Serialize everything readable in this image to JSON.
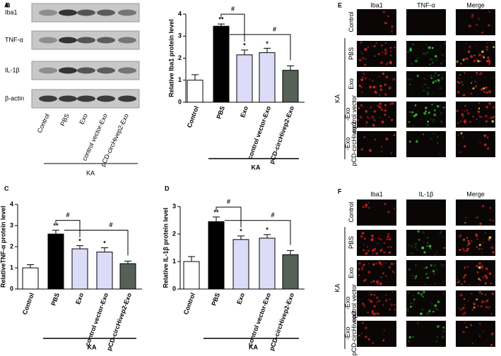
{
  "chart_data": [
    {
      "type": "bar",
      "panel": "B",
      "ylabel": "Relative Iba1 protein level",
      "group_label": "KA",
      "categories": [
        "Control",
        "PBS",
        "Exo",
        "control vector-Exo",
        "pCD-circHivep2-Exo"
      ],
      "values": [
        1.0,
        3.45,
        2.15,
        2.25,
        1.45
      ],
      "errors": [
        0.25,
        0.1,
        0.22,
        0.2,
        0.2
      ],
      "colors": [
        "#ffffff",
        "#000000",
        "#dcdcf8",
        "#dcdcf8",
        "#566056"
      ],
      "significance": [
        null,
        "**",
        "*",
        "*",
        null
      ],
      "comparison_labels": [
        "#",
        "#"
      ],
      "ylim": [
        0,
        4
      ],
      "yticks": [
        0,
        1,
        2,
        3,
        4
      ]
    },
    {
      "type": "bar",
      "panel": "C",
      "ylabel": "RelativeTNF-α  protein level",
      "group_label": "KA",
      "categories": [
        "Control",
        "PBS",
        "Exo",
        "control vector-Exo",
        "pCD-circHivep2-Exo"
      ],
      "values": [
        1.0,
        2.6,
        1.9,
        1.75,
        1.2
      ],
      "errors": [
        0.15,
        0.18,
        0.15,
        0.2,
        0.12
      ],
      "colors": [
        "#ffffff",
        "#000000",
        "#dcdcf8",
        "#dcdcf8",
        "#566056"
      ],
      "significance": [
        null,
        "**",
        "*",
        "*",
        null
      ],
      "comparison_labels": [
        "#",
        "#"
      ],
      "ylim": [
        0,
        4
      ],
      "yticks": [
        0,
        1,
        2,
        3,
        4
      ]
    },
    {
      "type": "bar",
      "panel": "D",
      "ylabel": "Relative IL-1β  protein level",
      "group_label": "KA",
      "categories": [
        "Control",
        "PBS",
        "Exo",
        "control vector-Exo",
        "pCD-circHivep2-Exo"
      ],
      "values": [
        1.0,
        2.45,
        1.8,
        1.85,
        1.25
      ],
      "errors": [
        0.18,
        0.17,
        0.13,
        0.13,
        0.15
      ],
      "colors": [
        "#ffffff",
        "#000000",
        "#dcdcf8",
        "#dcdcf8",
        "#566056"
      ],
      "significance": [
        null,
        "**",
        "*",
        "*",
        null
      ],
      "comparison_labels": [
        "#",
        "#"
      ],
      "ylim": [
        0,
        3
      ],
      "yticks": [
        0,
        1,
        2,
        3
      ]
    }
  ],
  "blot": {
    "panel": "A",
    "rows": [
      "Iba1",
      "TNF-α",
      "IL-1β",
      "β-actin"
    ],
    "lanes": [
      "Control",
      "PBS",
      "Exo",
      "control vector-Exo",
      "pCD-circHivep2-Exo"
    ],
    "group_label": "KA"
  },
  "images": [
    {
      "panel": "E",
      "columns": [
        "Iba1",
        "TNF-α",
        "Merge"
      ],
      "rows": [
        "Control",
        "PBS",
        "Exo",
        "control vector\n-Exo",
        "pCD-circHivep2\n-Exo"
      ],
      "group_label": "KA"
    },
    {
      "panel": "F",
      "columns": [
        "Iba1",
        "IL-1β",
        "Merge"
      ],
      "rows": [
        "Control",
        "PBS",
        "Exo",
        "control vector\n-Exo",
        "pCD-circHivep2\n-Exo"
      ],
      "group_label": "KA"
    }
  ]
}
